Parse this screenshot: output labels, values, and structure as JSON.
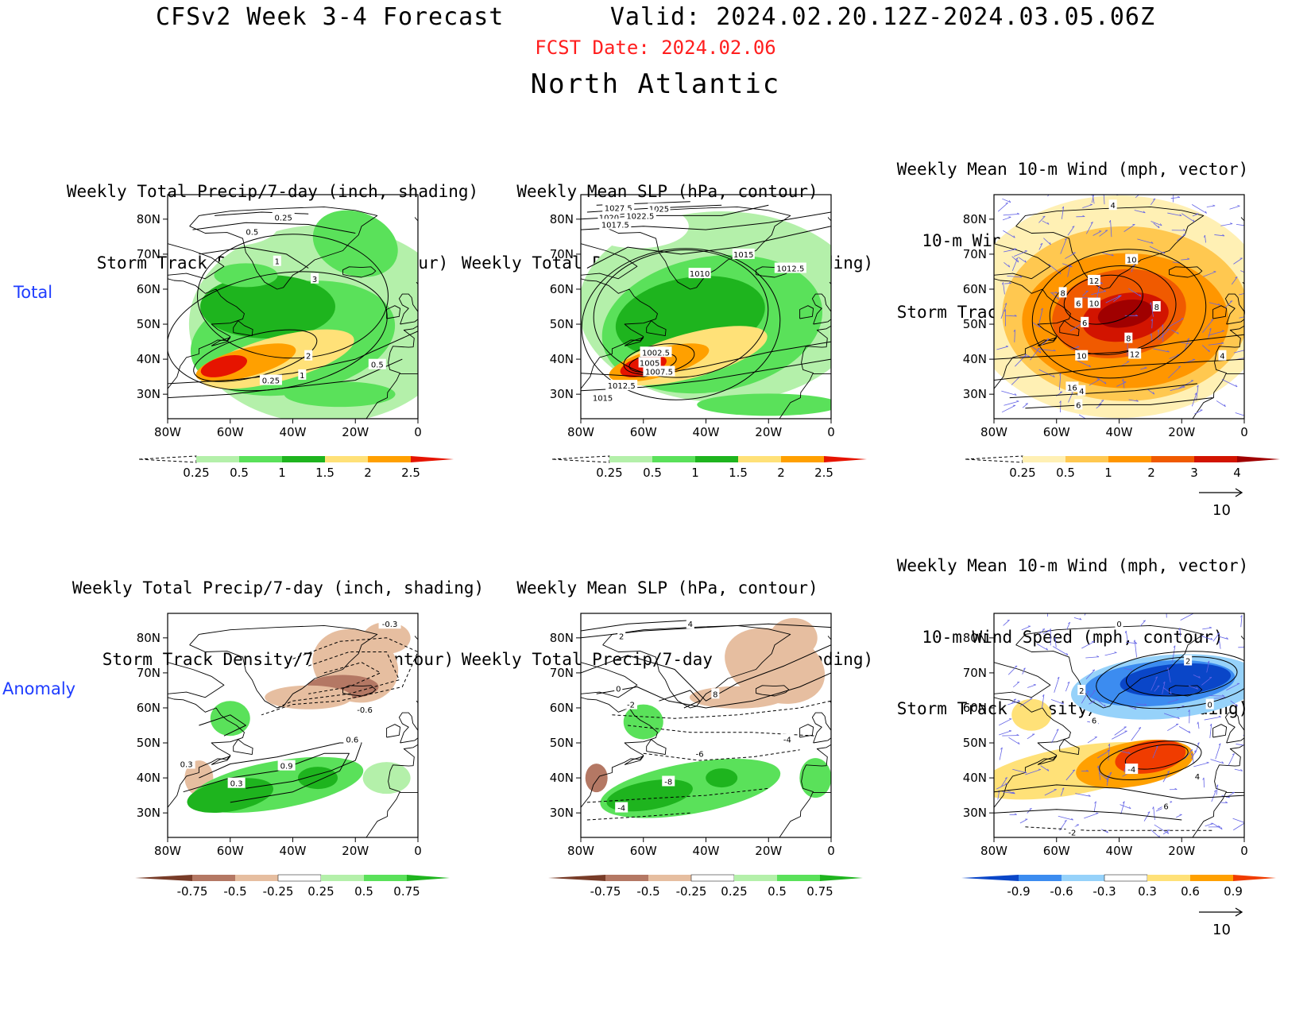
{
  "header": {
    "title": "CFSv2 Week 3-4 Forecast",
    "valid": "Valid: 2024.02.20.12Z-2024.03.05.06Z",
    "fcst_date": "FCST Date: 2024.02.06",
    "region": "North Atlantic"
  },
  "rows": [
    {
      "label": "Total"
    },
    {
      "label": "Anomaly"
    }
  ],
  "axes": {
    "lon_ticks": [
      "80W",
      "60W",
      "40W",
      "20W",
      "0"
    ],
    "lat_ticks": [
      "80N",
      "70N",
      "60N",
      "50N",
      "40N",
      "30N"
    ],
    "lon_range": [
      -80,
      0
    ],
    "lat_range": [
      23,
      87
    ]
  },
  "panels": [
    {
      "title": [
        "Weekly Total Precip/7-day (inch, shading)",
        "Storm Track Density/7-day (contour)"
      ],
      "colorbar": {
        "labels": [
          "0.25",
          "0.5",
          "1",
          "1.5",
          "2",
          "2.5"
        ],
        "colors": [
          "#ffffff",
          "#b4f0aa",
          "#5ae15a",
          "#1eb41e",
          "#ffe178",
          "#ffa000",
          "#e61400"
        ]
      },
      "contour_labels": [
        "0.25",
        "0.5",
        "1",
        "3",
        "2",
        "1",
        "0.25",
        "0.5"
      ],
      "type": "total_precip"
    },
    {
      "title": [
        "Weekly Mean SLP (hPa, contour)",
        "Weekly Total Precip/7-day (inch, shading)"
      ],
      "colorbar": {
        "labels": [
          "0.25",
          "0.5",
          "1",
          "1.5",
          "2",
          "2.5"
        ],
        "colors": [
          "#ffffff",
          "#b4f0aa",
          "#5ae15a",
          "#1eb41e",
          "#ffe178",
          "#ffa000",
          "#e61400"
        ]
      },
      "contour_labels": [
        "1027.5",
        "1025",
        "1022.5",
        "1020",
        "1017.5",
        "1015",
        "1012.5",
        "1010",
        "1002.5",
        "1005",
        "1007.5",
        "1012.5",
        "1015"
      ],
      "type": "slp_precip"
    },
    {
      "title": [
        "Weekly Mean 10-m Wind (mph, vector)",
        "10-m Wind Speed (mph, contour)",
        "Storm Track Density/7-day (shading)"
      ],
      "colorbar": {
        "labels": [
          "0.25",
          "0.5",
          "1",
          "2",
          "3",
          "4"
        ],
        "colors": [
          "#ffffff",
          "#fff0b4",
          "#ffc850",
          "#ff9600",
          "#f05a00",
          "#d21400",
          "#a00000"
        ]
      },
      "contour_labels": [
        "4",
        "10",
        "12",
        "8",
        "10",
        "6",
        "8",
        "6",
        "8",
        "10",
        "12",
        "4",
        "16",
        "4",
        "6"
      ],
      "vector_ref": "10",
      "type": "wind_storm"
    },
    {
      "title": [
        "Weekly Total Precip/7-day (inch, shading)",
        "Storm Track Density/7-day (contour)"
      ],
      "colorbar": {
        "labels": [
          "-0.75",
          "-0.5",
          "-0.25",
          "0.25",
          "0.5",
          "0.75"
        ],
        "colors": [
          "#783c28",
          "#b47864",
          "#e6bea0",
          "#ffffff",
          "#b4f0aa",
          "#5ae15a",
          "#1eb41e"
        ]
      },
      "contour_labels": [
        "-0.3",
        "-0.6",
        "0.6",
        "0.3",
        "0.9",
        "0.3"
      ],
      "type": "anom_precip"
    },
    {
      "title": [
        "Weekly Mean SLP (hPa, contour)",
        "Weekly Total Precip/7-day (inch, shading)"
      ],
      "colorbar": {
        "labels": [
          "-0.75",
          "-0.5",
          "-0.25",
          "0.25",
          "0.5",
          "0.75"
        ],
        "colors": [
          "#783c28",
          "#b47864",
          "#e6bea0",
          "#ffffff",
          "#b4f0aa",
          "#5ae15a",
          "#1eb41e"
        ]
      },
      "contour_labels": [
        "4",
        "2",
        "0",
        "-2",
        "8",
        "-4",
        "-6",
        "-8",
        "-4"
      ],
      "type": "anom_slp"
    },
    {
      "title": [
        "Weekly Mean 10-m Wind (mph, vector)",
        "10-m Wind Speed (mph, contour)",
        "Storm Track Density/7-day (shading)"
      ],
      "colorbar": {
        "labels": [
          "-0.9",
          "-0.6",
          "-0.3",
          "0.3",
          "0.6",
          "0.9"
        ],
        "colors": [
          "#0a46c8",
          "#3c8cf0",
          "#96d2fa",
          "#ffffff",
          "#ffe178",
          "#ffa000",
          "#f03c00"
        ]
      },
      "contour_labels": [
        "0",
        "2",
        "2",
        "6",
        "0",
        "-4",
        "4",
        "6",
        "-2"
      ],
      "vector_ref": "10",
      "type": "anom_wind"
    }
  ]
}
